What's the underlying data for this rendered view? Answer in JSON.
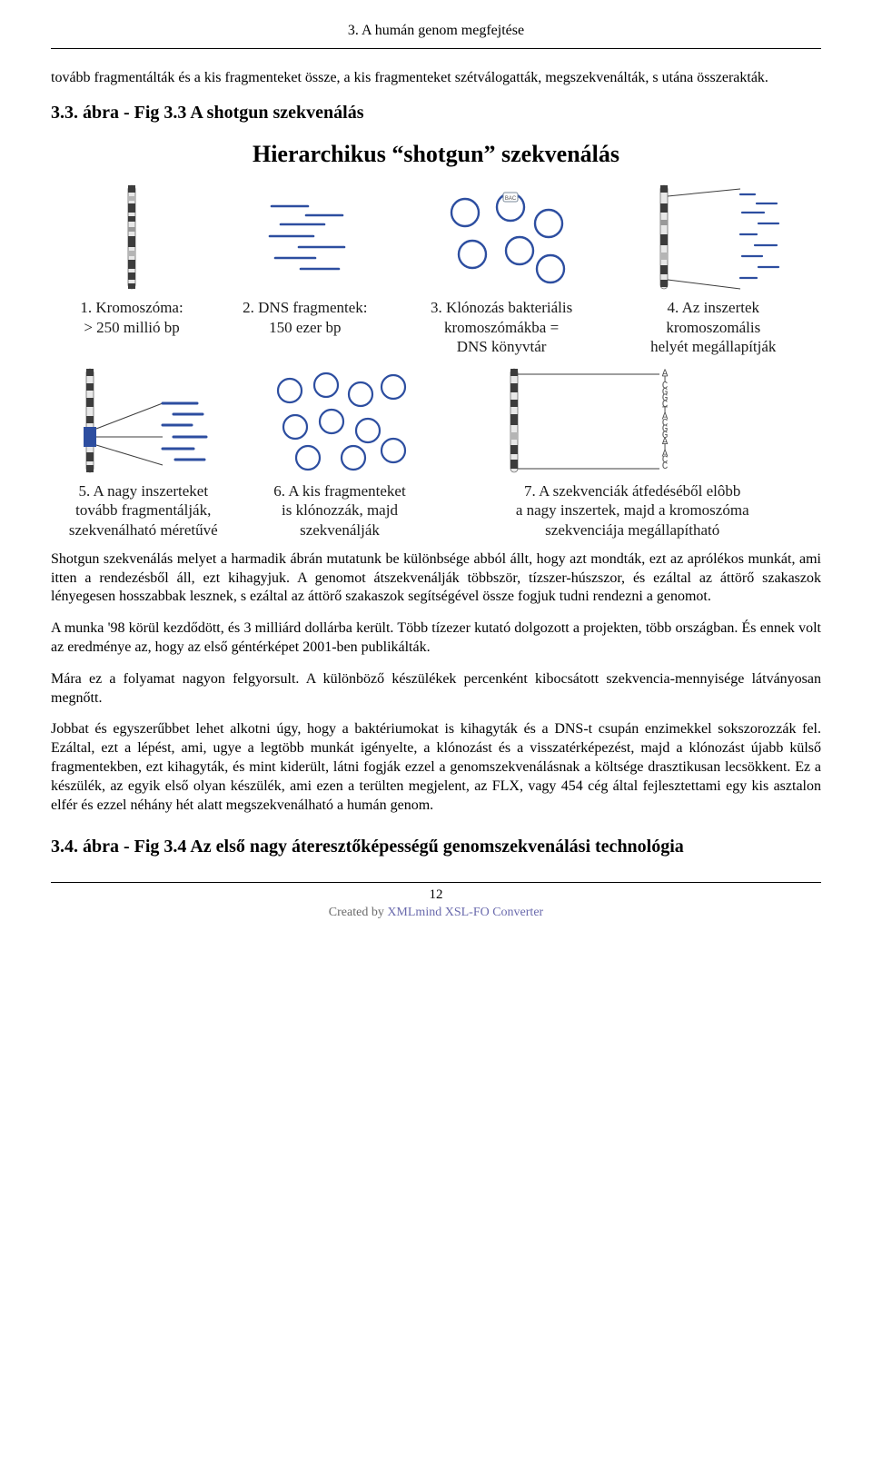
{
  "header": {
    "chapter": "3. A humán genom megfejtése"
  },
  "intro_paragraph": "tovább fragmentálták és a kis fragmenteket össze, a kis fragmenteket szétválogatták, megszekvenálták, s utána összerakták.",
  "subtitle1": "3.3. ábra - Fig 3.3 A shotgun szekvenálás",
  "figure": {
    "title_pre": "Hierarchikus ",
    "title_mid": "shotgun",
    "title_post": " szekvenálás",
    "panels": {
      "p1": "1. Kromoszóma:\n> 250 millió bp",
      "p2": "2. DNS fragmentek:\n150 ezer bp",
      "p3": "3. Klónozás bakteriális\nkromoszómákba =\nDNS könyvtár",
      "p4": "4. Az inszertek\nkromoszomális\nhelyét megállapítják",
      "p5": "5. A nagy inszerteket\ntovább fragmentálják,\nszekvenálható méretűvé",
      "p6": "6. A kis fragmenteket\nis klónozzák, majd\nszekvenálják",
      "p7": "7. A szekvenciák átfedéséből elôbb\na nagy inszertek, majd a kromoszóma\nszekvenciája megállapítható"
    },
    "colors": {
      "band_dark": "#3c3c3c",
      "band_light": "#dedede",
      "frag_blue": "#2d4ea0",
      "bac_stroke": "#2d4ea0",
      "bac_tag": "#cfd6dd",
      "seq_letters": "#555555",
      "guide_line": "#3c3c3c"
    },
    "seq_letters": "ATCGGCTACGGATACC"
  },
  "body_paragraphs": [
    "Shotgun szekvenálás melyet a harmadik ábrán mutatunk be különbsége abból állt, hogy azt mondták, ezt az aprólékos munkát, ami itten a rendezésből áll, ezt kihagyjuk. A genomot átszekvenálják többször, tízszer-húszszor, és ezáltal az áttörő szakaszok lényegesen hosszabbak lesznek, s ezáltal az áttörő szakaszok segítségével össze fogjuk tudni rendezni a genomot.",
    "A munka '98 körül kezdődött, és 3 milliárd dollárba került. Több tízezer kutató dolgozott a projekten, több országban. És ennek volt az eredménye az, hogy az első géntérképet 2001-ben publikálták.",
    "Mára ez a folyamat nagyon felgyorsult. A különböző készülékek percenként kibocsátott szekvencia-mennyisége látványosan megnőtt.",
    "Jobbat és egyszerűbbet lehet alkotni úgy, hogy a baktériumokat is kihagyták és a DNS-t csupán enzimekkel sokszorozzák fel. Ezáltal, ezt a lépést, ami, ugye a legtöbb munkát igényelte, a klónozást és a visszatérképezést, majd a klónozást újabb külső fragmentekben, ezt kihagyták, és mint kiderült, látni fogják ezzel a genomszekvenálásnak a költsége drasztikusan lecsökkent. Ez a készülék, az egyik első olyan készülék, ami ezen a terülten megjelent, az FLX, vagy 454 cég által fejlesztettami egy kis asztalon elfér és ezzel néhány hét alatt megszekvenálható a humán genom."
  ],
  "subtitle2": "3.4. ábra - Fig 3.4 Az első nagy áteresztőképességű genomszekvenálási technológia",
  "footer": {
    "page_number": "12",
    "credit_prefix": "Created by ",
    "credit_link": "XMLmind XSL-FO Converter"
  }
}
